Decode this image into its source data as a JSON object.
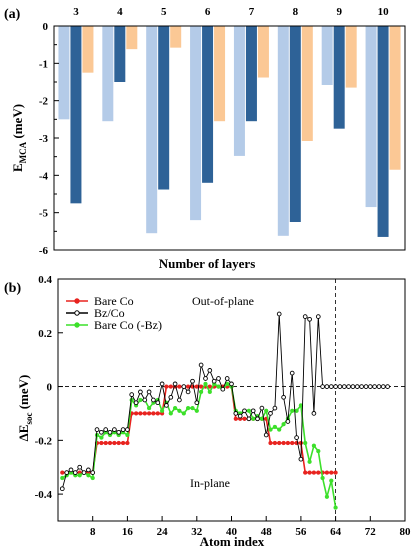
{
  "chart_data": [
    {
      "panel_label": "(a)",
      "type": "bar",
      "categories": [
        "3",
        "4",
        "5",
        "6",
        "7",
        "8",
        "9",
        "10"
      ],
      "series": [
        {
          "color": "#b4cbe8",
          "values": [
            -2.5,
            -2.55,
            -5.55,
            -5.2,
            -3.48,
            -5.62,
            -1.58,
            -4.85
          ]
        },
        {
          "color": "#2e6297",
          "values": [
            -4.75,
            -1.5,
            -4.38,
            -4.2,
            -2.55,
            -5.25,
            -2.75,
            -5.65
          ]
        },
        {
          "color": "#fbc895",
          "values": [
            -1.25,
            -0.62,
            -0.58,
            -2.55,
            -1.38,
            -3.08,
            -1.65,
            -3.85
          ]
        }
      ],
      "ylabel_main": "E",
      "ylabel_sub": "MCA",
      "ylabel_unit": " (meV)",
      "xlabel": "Number of layers",
      "ylim": [
        -6,
        0
      ],
      "yticks": [
        "-6",
        "-5",
        "-4",
        "-3",
        "-2",
        "-1",
        "0"
      ]
    },
    {
      "panel_label": "(b)",
      "type": "line",
      "ylabel_main": "ΔE",
      "ylabel_sub": "soc",
      "ylabel_unit": " (meV)",
      "xlabel": "Atom index",
      "xlim": [
        0,
        80
      ],
      "ylim": [
        -0.5,
        0.4
      ],
      "xticks": [
        "8",
        "16",
        "24",
        "32",
        "40",
        "48",
        "56",
        "64",
        "72",
        "80"
      ],
      "yticks": [
        "0.4",
        "0.2",
        "0",
        "-0.2",
        "-0.4"
      ],
      "vline_x": 64,
      "annotations": {
        "top": "Out-of-plane",
        "bottom": "In-plane"
      },
      "legend_position": "top-left",
      "series": [
        {
          "name": "Bare Co",
          "color": "#e8231f",
          "marker": "filled",
          "x": [
            1,
            2,
            3,
            4,
            5,
            6,
            7,
            8,
            9,
            10,
            11,
            12,
            13,
            14,
            15,
            16,
            17,
            18,
            19,
            20,
            21,
            22,
            23,
            24,
            25,
            26,
            27,
            28,
            29,
            30,
            31,
            32,
            33,
            34,
            35,
            36,
            37,
            38,
            39,
            40,
            41,
            42,
            43,
            44,
            45,
            46,
            47,
            48,
            49,
            50,
            51,
            52,
            53,
            54,
            55,
            56,
            57,
            58,
            59,
            60,
            61,
            62,
            63,
            64
          ],
          "y": [
            -0.32,
            -0.32,
            -0.32,
            -0.32,
            -0.32,
            -0.32,
            -0.32,
            -0.32,
            -0.21,
            -0.21,
            -0.21,
            -0.21,
            -0.21,
            -0.21,
            -0.21,
            -0.21,
            -0.1,
            -0.1,
            -0.1,
            -0.1,
            -0.1,
            -0.1,
            -0.1,
            -0.1,
            0,
            0,
            0,
            0,
            0,
            0,
            0,
            0,
            0,
            0,
            0,
            0,
            0,
            0,
            0,
            0,
            -0.12,
            -0.12,
            -0.12,
            -0.12,
            -0.12,
            -0.12,
            -0.12,
            -0.12,
            -0.21,
            -0.21,
            -0.21,
            -0.21,
            -0.21,
            -0.21,
            -0.21,
            -0.21,
            -0.32,
            -0.32,
            -0.32,
            -0.32,
            -0.32,
            -0.32,
            -0.32,
            -0.32
          ]
        },
        {
          "name": "Bz/Co",
          "color": "#000000",
          "marker": "open",
          "x": [
            1,
            2,
            3,
            4,
            5,
            6,
            7,
            8,
            9,
            10,
            11,
            12,
            13,
            14,
            15,
            16,
            17,
            18,
            19,
            20,
            21,
            22,
            23,
            24,
            25,
            26,
            27,
            28,
            29,
            30,
            31,
            32,
            33,
            34,
            35,
            36,
            37,
            38,
            39,
            40,
            41,
            42,
            43,
            44,
            45,
            46,
            47,
            48,
            49,
            50,
            51,
            52,
            53,
            54,
            55,
            56,
            57,
            58,
            59,
            60,
            61,
            62,
            63,
            64,
            65,
            66,
            67,
            68,
            69,
            70,
            71,
            72,
            73,
            74,
            75,
            76
          ],
          "y": [
            -0.38,
            -0.32,
            -0.31,
            -0.32,
            -0.3,
            -0.32,
            -0.31,
            -0.32,
            -0.16,
            -0.17,
            -0.16,
            -0.17,
            -0.16,
            -0.17,
            -0.16,
            -0.16,
            -0.03,
            -0.06,
            -0.02,
            -0.05,
            -0.02,
            -0.05,
            -0.06,
            0.01,
            -0.07,
            -0.04,
            0.01,
            -0.05,
            0,
            -0.02,
            0.02,
            -0.06,
            0.08,
            0.03,
            0.06,
            0.02,
            0.03,
            -0.01,
            0.03,
            0.01,
            -0.1,
            -0.11,
            -0.09,
            -0.12,
            -0.09,
            -0.12,
            -0.08,
            -0.18,
            -0.1,
            -0.08,
            0.27,
            -0.04,
            -0.13,
            0.05,
            -0.19,
            -0.27,
            0.26,
            0.25,
            -0.1,
            0.26,
            0,
            0,
            0,
            0,
            0,
            0,
            0,
            0,
            0,
            0,
            0,
            0,
            0,
            0,
            0,
            0
          ]
        },
        {
          "name": "Bare Co (-Bz)",
          "color": "#3ce02a",
          "marker": "filled",
          "x": [
            1,
            2,
            3,
            4,
            5,
            6,
            7,
            8,
            9,
            10,
            11,
            12,
            13,
            14,
            15,
            16,
            17,
            18,
            19,
            20,
            21,
            22,
            23,
            24,
            25,
            26,
            27,
            28,
            29,
            30,
            31,
            32,
            33,
            34,
            35,
            36,
            37,
            38,
            39,
            40,
            41,
            42,
            43,
            44,
            45,
            46,
            47,
            48,
            49,
            50,
            51,
            52,
            53,
            54,
            55,
            56,
            57,
            58,
            59,
            60,
            61,
            62,
            63,
            64
          ],
          "y": [
            -0.34,
            -0.33,
            -0.32,
            -0.33,
            -0.33,
            -0.32,
            -0.33,
            -0.34,
            -0.18,
            -0.19,
            -0.17,
            -0.18,
            -0.17,
            -0.18,
            -0.17,
            -0.18,
            -0.05,
            -0.07,
            -0.05,
            -0.05,
            -0.08,
            -0.06,
            -0.05,
            -0.09,
            -0.06,
            -0.1,
            -0.08,
            -0.09,
            -0.1,
            -0.08,
            -0.08,
            -0.09,
            -0.02,
            0.01,
            -0.02,
            0.01,
            0,
            -0.01,
            0.01,
            0,
            -0.09,
            -0.1,
            -0.09,
            -0.09,
            -0.12,
            -0.11,
            -0.12,
            -0.09,
            -0.16,
            -0.15,
            -0.16,
            -0.14,
            -0.12,
            -0.09,
            -0.09,
            -0.07,
            -0.21,
            -0.28,
            -0.22,
            -0.24,
            -0.34,
            -0.41,
            -0.35,
            -0.45
          ]
        }
      ]
    }
  ]
}
